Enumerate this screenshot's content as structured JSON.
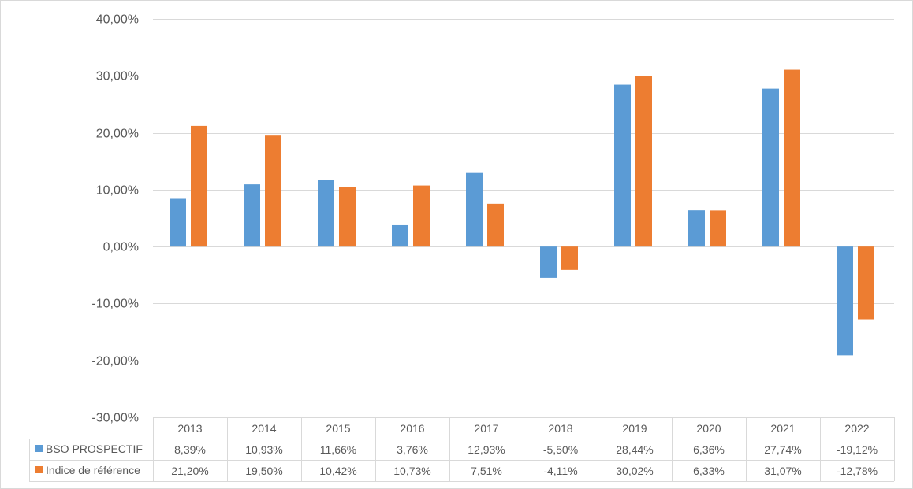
{
  "chart_data": {
    "type": "bar",
    "categories": [
      "2013",
      "2014",
      "2015",
      "2016",
      "2017",
      "2018",
      "2019",
      "2020",
      "2021",
      "2022"
    ],
    "series": [
      {
        "name": "BSO PROSPECTIF",
        "color": "#5b9bd5",
        "values": [
          8.39,
          10.93,
          11.66,
          3.76,
          12.93,
          -5.5,
          28.44,
          6.36,
          27.74,
          -19.12
        ],
        "labels": [
          "8,39%",
          "10,93%",
          "11,66%",
          "3,76%",
          "12,93%",
          "-5,50%",
          "28,44%",
          "6,36%",
          "27,74%",
          "-19,12%"
        ]
      },
      {
        "name": "Indice de référence",
        "color": "#ed7d31",
        "values": [
          21.2,
          19.5,
          10.42,
          10.73,
          7.51,
          -4.11,
          30.02,
          6.33,
          31.07,
          -12.78
        ],
        "labels": [
          "21,20%",
          "19,50%",
          "10,42%",
          "10,73%",
          "7,51%",
          "-4,11%",
          "30,02%",
          "6,33%",
          "31,07%",
          "-12,78%"
        ]
      }
    ],
    "ylim": [
      -30,
      40
    ],
    "yticks": [
      40,
      30,
      20,
      10,
      0,
      -10,
      -20,
      -30
    ],
    "ytick_labels": [
      "40,00%",
      "30,00%",
      "20,00%",
      "10,00%",
      "0,00%",
      "-10,00%",
      "-20,00%",
      "-30,00%"
    ],
    "grid": true,
    "legend": "data-table",
    "gridline_color": "#d9d9d9"
  }
}
